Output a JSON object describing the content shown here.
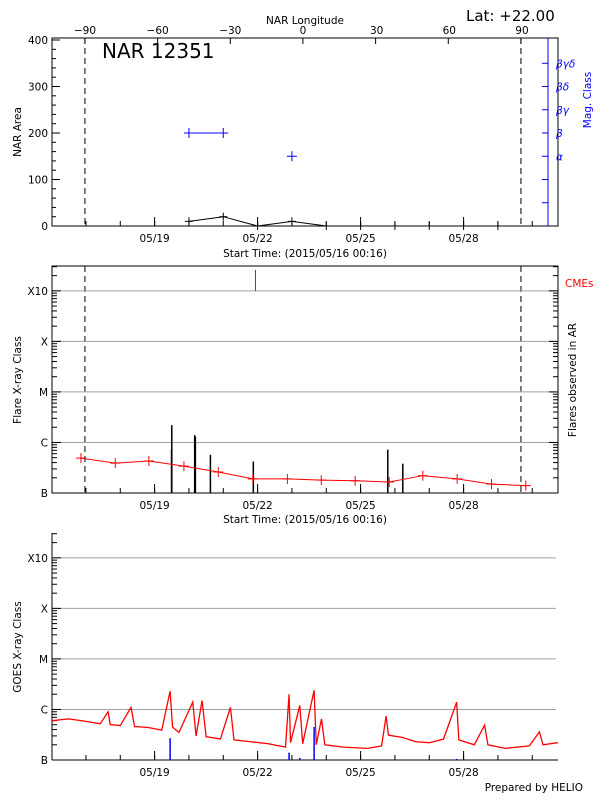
{
  "time_axis": {
    "start": "2015-05-16T00:16",
    "end": "2015-05-30T18:00",
    "major_ticks": [
      {
        "time": "2015-05-19T00:00",
        "label": "05/19"
      },
      {
        "time": "2015-05-22T00:00",
        "label": "05/22"
      },
      {
        "time": "2015-05-25T00:00",
        "label": "05/25"
      },
      {
        "time": "2015-05-28T00:00",
        "label": "05/28"
      }
    ],
    "xlabel": "Start Time: (2015/05/16 00:16)"
  },
  "footer": "Prepared by HELIO",
  "chart_data": [
    {
      "type": "line",
      "title": "NAR 12351",
      "lat_label": "Lat: +22.00",
      "top_axis": {
        "label": "NAR Longitude",
        "range": [
          -103.6,
          105.3
        ],
        "ticks": [
          -90,
          -60,
          -30,
          0,
          30,
          60,
          90
        ]
      },
      "ylabel": "NAR Area",
      "ylim": [
        0,
        400
      ],
      "yticks": [
        0,
        100,
        200,
        300,
        400
      ],
      "y2label": "Mag. Class",
      "y2_ticks": [
        "",
        "",
        "α",
        "β",
        "βγ",
        "βδ",
        "βγδ"
      ],
      "limb_longitudes": [
        -90,
        90
      ],
      "area_series": {
        "color": "#000000",
        "points": [
          {
            "time": "2015-05-20T00:00",
            "value": 10
          },
          {
            "time": "2015-05-21T00:00",
            "value": 20
          },
          {
            "time": "2015-05-22T00:00",
            "value": 0
          },
          {
            "time": "2015-05-23T00:00",
            "value": 10
          },
          {
            "time": "2015-05-24T00:00",
            "value": 0
          },
          {
            "time": "2015-05-25T00:00",
            "value": 0
          },
          {
            "time": "2015-05-26T00:00",
            "value": 0
          },
          {
            "time": "2015-05-27T00:00",
            "value": 0
          },
          {
            "time": "2015-05-28T00:00",
            "value": 0
          },
          {
            "time": "2015-05-29T00:00",
            "value": 0
          }
        ]
      },
      "mag_class_series": {
        "color": "#0000ff",
        "points": [
          {
            "time": "2015-05-20T00:00",
            "class": "β"
          },
          {
            "time": "2015-05-21T00:00",
            "class": "β"
          },
          {
            "time": "2015-05-23T00:00",
            "class": "α"
          }
        ]
      }
    },
    {
      "type": "bar",
      "ylabel": "Flare X-ray Class",
      "y2label": "Flares observed in AR",
      "cme_label": "CMEs",
      "yscale": "log",
      "ylim": [
        1e-07,
        0.0031
      ],
      "class_ticks": [
        {
          "value": 1e-07,
          "label": "B"
        },
        {
          "value": 1e-06,
          "label": "C"
        },
        {
          "value": 1e-05,
          "label": "M"
        },
        {
          "value": 0.0001,
          "label": "X"
        },
        {
          "value": 0.001,
          "label": "X10"
        }
      ],
      "grid": true,
      "colors": {
        "flares": "#000000",
        "background": "#ff0000",
        "cme": "#ff0000",
        "grid": "#a0a0a0"
      },
      "flares": [
        {
          "time": "2015-05-19T12:00",
          "flux": 2.2e-06
        },
        {
          "time": "2015-05-19T11:50",
          "flux": 7.2e-07
        },
        {
          "time": "2015-05-20T04:00",
          "flux": 1.4e-06
        },
        {
          "time": "2015-05-20T04:30",
          "flux": 1.3e-06
        },
        {
          "time": "2015-05-20T15:00",
          "flux": 5.7e-07
        },
        {
          "time": "2015-05-21T21:00",
          "flux": 4.2e-07
        },
        {
          "time": "2015-05-25T19:00",
          "flux": 7.2e-07
        },
        {
          "time": "2015-05-26T05:30",
          "flux": 3.8e-07
        }
      ],
      "cmes": [
        {
          "time": "2015-05-21T22:30"
        }
      ],
      "background_flux": [
        {
          "time": "2015-05-16T20:30",
          "flux": 4.9e-07
        },
        {
          "time": "2015-05-17T20:30",
          "flux": 3.9e-07
        },
        {
          "time": "2015-05-18T20:00",
          "flux": 4.3e-07
        },
        {
          "time": "2015-05-19T20:30",
          "flux": 3.4e-07
        },
        {
          "time": "2015-05-20T20:30",
          "flux": 2.6e-07
        },
        {
          "time": "2015-05-21T20:40",
          "flux": 1.9e-07
        },
        {
          "time": "2015-05-22T20:50",
          "flux": 1.9e-07
        },
        {
          "time": "2015-05-23T20:30",
          "flux": 1.8e-07
        },
        {
          "time": "2015-05-24T20:10",
          "flux": 1.75e-07
        },
        {
          "time": "2015-05-25T20:00",
          "flux": 1.65e-07
        },
        {
          "time": "2015-05-26T19:30",
          "flux": 2.2e-07
        },
        {
          "time": "2015-05-27T19:30",
          "flux": 1.9e-07
        },
        {
          "time": "2015-05-28T19:30",
          "flux": 1.5e-07
        },
        {
          "time": "2015-05-29T19:30",
          "flux": 1.4e-07
        }
      ]
    },
    {
      "type": "line",
      "ylabel": "GOES X-ray Class",
      "yscale": "log",
      "ylim": [
        1e-07,
        0.0031
      ],
      "class_ticks": [
        {
          "value": 1e-07,
          "label": "B"
        },
        {
          "value": 1e-06,
          "label": "C"
        },
        {
          "value": 1e-05,
          "label": "M"
        },
        {
          "value": 0.0001,
          "label": "X"
        },
        {
          "value": 0.001,
          "label": "X10"
        }
      ],
      "grid": true,
      "colors": {
        "flux": "#ff0000",
        "events": "#0000ff",
        "grid": "#a0a0a0"
      },
      "goes_flux": [
        {
          "time": "2015-05-16T00:16",
          "flux": 6e-07
        },
        {
          "time": "2015-05-16T12:00",
          "flux": 6.5e-07
        },
        {
          "time": "2015-05-17T00:00",
          "flux": 5.8e-07
        },
        {
          "time": "2015-05-17T10:00",
          "flux": 5.2e-07
        },
        {
          "time": "2015-05-17T15:30",
          "flux": 9e-07
        },
        {
          "time": "2015-05-17T17:00",
          "flux": 5e-07
        },
        {
          "time": "2015-05-18T00:00",
          "flux": 4.8e-07
        },
        {
          "time": "2015-05-18T07:30",
          "flux": 1.1e-06
        },
        {
          "time": "2015-05-18T10:00",
          "flux": 4.6e-07
        },
        {
          "time": "2015-05-18T19:30",
          "flux": 4.4e-07
        },
        {
          "time": "2015-05-19T05:00",
          "flux": 3.9e-07
        },
        {
          "time": "2015-05-19T10:50",
          "flux": 2.3e-06
        },
        {
          "time": "2015-05-19T12:30",
          "flux": 4.5e-07
        },
        {
          "time": "2015-05-19T17:00",
          "flux": 3.5e-07
        },
        {
          "time": "2015-05-20T02:40",
          "flux": 1.4e-06
        },
        {
          "time": "2015-05-20T05:00",
          "flux": 3e-07
        },
        {
          "time": "2015-05-20T09:10",
          "flux": 1.5e-06
        },
        {
          "time": "2015-05-20T12:00",
          "flux": 2.9e-07
        },
        {
          "time": "2015-05-20T22:00",
          "flux": 2.6e-07
        },
        {
          "time": "2015-05-21T05:00",
          "flux": 1.1e-06
        },
        {
          "time": "2015-05-21T07:30",
          "flux": 2.5e-07
        },
        {
          "time": "2015-05-21T19:30",
          "flux": 2.3e-07
        },
        {
          "time": "2015-05-22T07:30",
          "flux": 2.1e-07
        },
        {
          "time": "2015-05-22T19:30",
          "flux": 1.8e-07
        },
        {
          "time": "2015-05-22T22:00",
          "flux": 2e-06
        },
        {
          "time": "2015-05-22T23:00",
          "flux": 2.2e-07
        },
        {
          "time": "2015-05-23T05:30",
          "flux": 1.2e-06
        },
        {
          "time": "2015-05-23T07:30",
          "flux": 2.1e-07
        },
        {
          "time": "2015-05-23T15:30",
          "flux": 2.4e-06
        },
        {
          "time": "2015-05-23T17:00",
          "flux": 2e-07
        },
        {
          "time": "2015-05-23T20:40",
          "flux": 6.5e-07
        },
        {
          "time": "2015-05-23T23:00",
          "flux": 2e-07
        },
        {
          "time": "2015-05-24T12:00",
          "flux": 1.8e-07
        },
        {
          "time": "2015-05-25T05:00",
          "flux": 1.7e-07
        },
        {
          "time": "2015-05-25T14:40",
          "flux": 1.9e-07
        },
        {
          "time": "2015-05-25T17:50",
          "flux": 7.4e-07
        },
        {
          "time": "2015-05-25T19:30",
          "flux": 3.1e-07
        },
        {
          "time": "2015-05-26T05:00",
          "flux": 2.8e-07
        },
        {
          "time": "2015-05-26T14:40",
          "flux": 2.3e-07
        },
        {
          "time": "2015-05-27T00:00",
          "flux": 2.2e-07
        },
        {
          "time": "2015-05-27T10:00",
          "flux": 2.6e-07
        },
        {
          "time": "2015-05-27T19:10",
          "flux": 1.4e-06
        },
        {
          "time": "2015-05-27T20:40",
          "flux": 2.5e-07
        },
        {
          "time": "2015-05-28T07:30",
          "flux": 2e-07
        },
        {
          "time": "2015-05-28T14:40",
          "flux": 4.9e-07
        },
        {
          "time": "2015-05-28T17:00",
          "flux": 2e-07
        },
        {
          "time": "2015-05-29T05:00",
          "flux": 1.7e-07
        },
        {
          "time": "2015-05-29T22:00",
          "flux": 1.9e-07
        },
        {
          "time": "2015-05-30T05:00",
          "flux": 3.6e-07
        },
        {
          "time": "2015-05-30T07:30",
          "flux": 2e-07
        },
        {
          "time": "2015-05-30T18:00",
          "flux": 2.2e-07
        }
      ],
      "events": [
        {
          "time": "2015-05-19T10:50",
          "flux": 2.7e-07
        },
        {
          "time": "2015-05-22T22:00",
          "flux": 1.4e-07
        },
        {
          "time": "2015-05-23T05:30",
          "flux": 1.1e-07
        },
        {
          "time": "2015-05-23T15:30",
          "flux": 4.5e-07
        },
        {
          "time": "2015-05-27T19:10",
          "flux": 1.05e-07
        }
      ]
    }
  ]
}
